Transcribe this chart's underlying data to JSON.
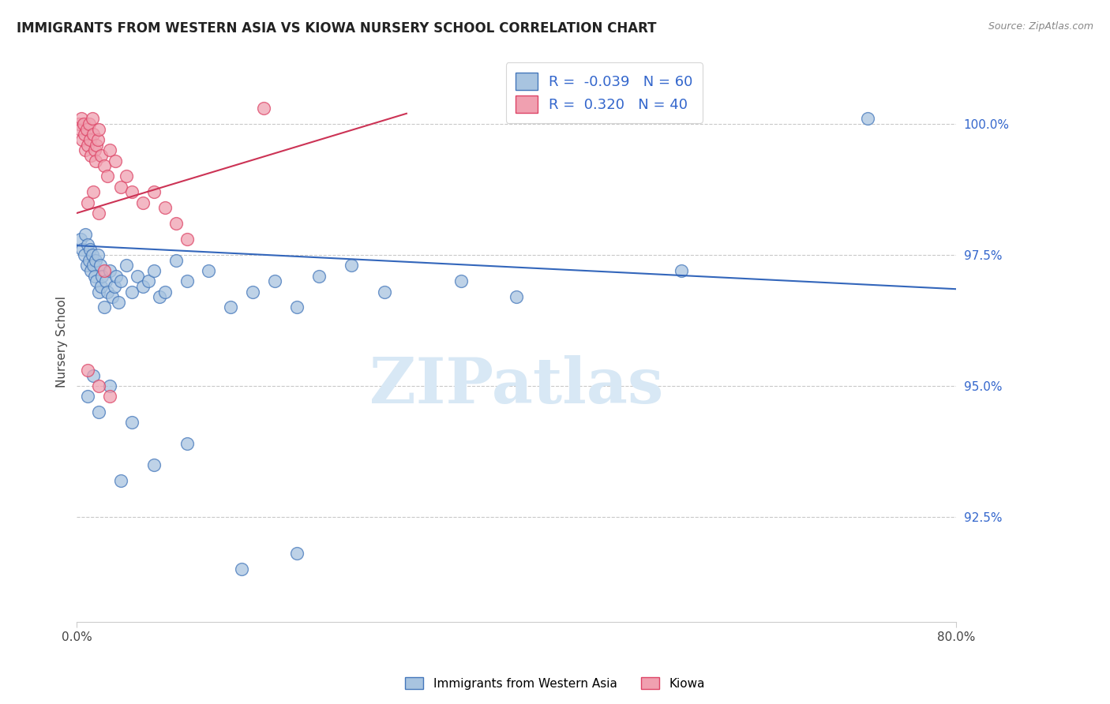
{
  "title": "IMMIGRANTS FROM WESTERN ASIA VS KIOWA NURSERY SCHOOL CORRELATION CHART",
  "source_text": "Source: ZipAtlas.com",
  "ylabel": "Nursery School",
  "xlim_min": 0.0,
  "xlim_max": 80.0,
  "ylim_min": 90.5,
  "ylim_max": 101.2,
  "yticks": [
    92.5,
    95.0,
    97.5,
    100.0
  ],
  "ytick_labels": [
    "92.5%",
    "95.0%",
    "97.5%",
    "100.0%"
  ],
  "xticks": [
    0.0,
    80.0
  ],
  "xtick_labels": [
    "0.0%",
    "80.0%"
  ],
  "blue_R": -0.039,
  "blue_N": 60,
  "pink_R": 0.32,
  "pink_N": 40,
  "blue_color": "#A8C4E0",
  "pink_color": "#F0A0B0",
  "blue_edge_color": "#4477BB",
  "pink_edge_color": "#DD4466",
  "blue_line_color": "#3366BB",
  "pink_line_color": "#CC3355",
  "watermark": "ZIPatlas",
  "watermark_color": "#D8E8F5",
  "legend_label_blue": "Immigrants from Western Asia",
  "legend_label_pink": "Kiowa",
  "blue_line_x0": 0.0,
  "blue_line_y0": 97.68,
  "blue_line_x1": 80.0,
  "blue_line_y1": 96.85,
  "pink_line_x0": 0.0,
  "pink_line_y0": 98.3,
  "pink_line_x1": 30.0,
  "pink_line_y1": 100.2,
  "blue_scatter_x": [
    0.3,
    0.5,
    0.7,
    0.8,
    0.9,
    1.0,
    1.1,
    1.2,
    1.3,
    1.4,
    1.5,
    1.6,
    1.7,
    1.8,
    1.9,
    2.0,
    2.1,
    2.2,
    2.3,
    2.5,
    2.6,
    2.8,
    3.0,
    3.2,
    3.4,
    3.6,
    3.8,
    4.0,
    4.5,
    5.0,
    5.5,
    6.0,
    6.5,
    7.0,
    7.5,
    8.0,
    9.0,
    10.0,
    12.0,
    14.0,
    16.0,
    18.0,
    20.0,
    22.0,
    25.0,
    28.0,
    35.0,
    40.0,
    55.0,
    72.0,
    1.0,
    1.5,
    2.0,
    3.0,
    4.0,
    5.0,
    7.0,
    10.0,
    15.0,
    20.0
  ],
  "blue_scatter_y": [
    97.8,
    97.6,
    97.5,
    97.9,
    97.3,
    97.7,
    97.4,
    97.6,
    97.2,
    97.5,
    97.3,
    97.1,
    97.4,
    97.0,
    97.5,
    96.8,
    97.3,
    96.9,
    97.1,
    96.5,
    97.0,
    96.8,
    97.2,
    96.7,
    96.9,
    97.1,
    96.6,
    97.0,
    97.3,
    96.8,
    97.1,
    96.9,
    97.0,
    97.2,
    96.7,
    96.8,
    97.4,
    97.0,
    97.2,
    96.5,
    96.8,
    97.0,
    96.5,
    97.1,
    97.3,
    96.8,
    97.0,
    96.7,
    97.2,
    100.1,
    94.8,
    95.2,
    94.5,
    95.0,
    93.2,
    94.3,
    93.5,
    93.9,
    91.5,
    91.8
  ],
  "pink_scatter_x": [
    0.2,
    0.3,
    0.4,
    0.5,
    0.6,
    0.7,
    0.8,
    0.9,
    1.0,
    1.1,
    1.2,
    1.3,
    1.4,
    1.5,
    1.6,
    1.7,
    1.8,
    1.9,
    2.0,
    2.2,
    2.5,
    2.8,
    3.0,
    3.5,
    4.0,
    4.5,
    5.0,
    6.0,
    7.0,
    8.0,
    9.0,
    10.0,
    1.0,
    1.5,
    2.0,
    2.5,
    1.0,
    2.0,
    3.0,
    17.0
  ],
  "pink_scatter_y": [
    100.0,
    99.9,
    100.1,
    99.7,
    100.0,
    99.8,
    99.5,
    99.9,
    99.6,
    100.0,
    99.7,
    99.4,
    100.1,
    99.8,
    99.5,
    99.3,
    99.6,
    99.7,
    99.9,
    99.4,
    99.2,
    99.0,
    99.5,
    99.3,
    98.8,
    99.0,
    98.7,
    98.5,
    98.7,
    98.4,
    98.1,
    97.8,
    98.5,
    98.7,
    98.3,
    97.2,
    95.3,
    95.0,
    94.8,
    100.3
  ]
}
